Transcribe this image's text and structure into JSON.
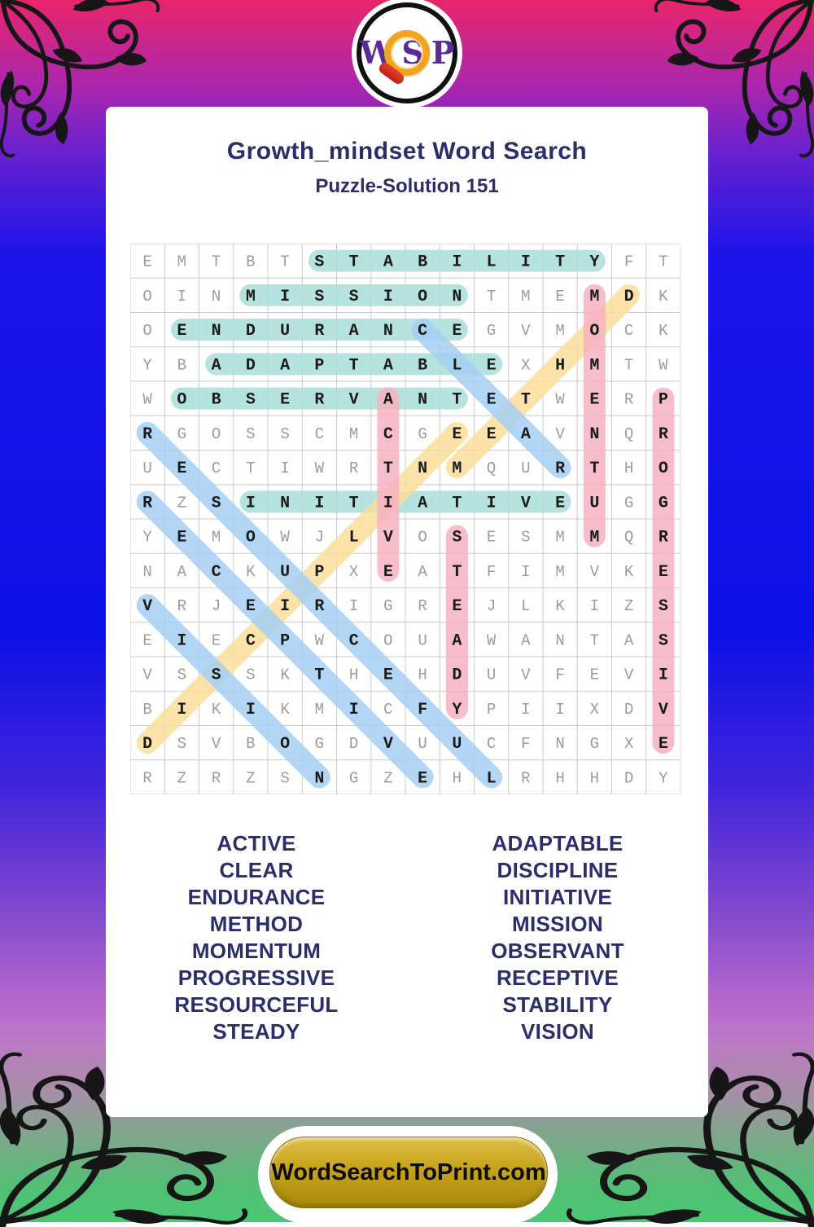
{
  "page": {
    "title": "Growth_mindset Word Search",
    "subtitle": "Puzzle-Solution 151"
  },
  "logo": {
    "w": "W",
    "s": "S",
    "p": "P",
    "icon": "magnifier-icon"
  },
  "grid": {
    "size": 16,
    "rows": [
      "EMTBTSTABILITYFT",
      "OINMISSIONTMEMDK",
      "OENDURANCEGVMOCK",
      "YBADAPTABLEXHMTW",
      "WOBSERVANTETWERP",
      "RGOSSCMCGEEAVNQR",
      "UECTIWRTNMQURTHO",
      "RZSINITIATIVEUGG",
      "YEMOWJLVOSESMMQR",
      "NACKUPXEATFIMVKE",
      "VRJEIRIGREJLKIZS",
      "EIECPWCOUAWANTAS",
      "VSSSKTHEHDUVFEVI",
      "BIKIKMICFYPIIXDV",
      "DSVBOGDVUUCFNGXE",
      "RZRZSNGZEHLRHHDY"
    ],
    "line_color": "#cccccc",
    "letter_color": "#9c9c9c",
    "highlight_letter_color": "#1a1a1a",
    "highlight_colors": {
      "teal": "#aadedb",
      "yellow": "#fbdf9b",
      "pink": "#f6b2c1",
      "blue": "#a5d0f3"
    },
    "highlights": [
      {
        "word": "STABILITY",
        "color": "teal",
        "start": [
          0,
          5
        ],
        "end": [
          0,
          13
        ]
      },
      {
        "word": "MISSION",
        "color": "teal",
        "start": [
          1,
          3
        ],
        "end": [
          1,
          9
        ]
      },
      {
        "word": "ENDURANCE",
        "color": "teal",
        "start": [
          2,
          1
        ],
        "end": [
          2,
          9
        ]
      },
      {
        "word": "ADAPTABLE",
        "color": "teal",
        "start": [
          3,
          2
        ],
        "end": [
          3,
          10
        ]
      },
      {
        "word": "OBSERVANT",
        "color": "teal",
        "start": [
          4,
          1
        ],
        "end": [
          4,
          9
        ]
      },
      {
        "word": "INITIATIVE",
        "color": "teal",
        "start": [
          7,
          3
        ],
        "end": [
          7,
          12
        ]
      },
      {
        "word": "METHOD",
        "color": "yellow",
        "start": [
          6,
          9
        ],
        "end": [
          1,
          14
        ]
      },
      {
        "word": "DISCIPLINE",
        "color": "yellow",
        "start": [
          14,
          0
        ],
        "end": [
          5,
          9
        ]
      },
      {
        "word": "MOMENTUM",
        "color": "pink",
        "start": [
          1,
          13
        ],
        "end": [
          8,
          13
        ]
      },
      {
        "word": "ACTIVE",
        "color": "pink",
        "start": [
          4,
          7
        ],
        "end": [
          9,
          7
        ]
      },
      {
        "word": "STEADY",
        "color": "pink",
        "start": [
          8,
          9
        ],
        "end": [
          13,
          9
        ]
      },
      {
        "word": "PROGRESSIVE",
        "color": "pink",
        "start": [
          4,
          15
        ],
        "end": [
          14,
          15
        ]
      },
      {
        "word": "CLEAR",
        "color": "blue",
        "start": [
          2,
          8
        ],
        "end": [
          6,
          12
        ]
      },
      {
        "word": "RESOURCEFUL",
        "color": "blue",
        "start": [
          5,
          0
        ],
        "end": [
          15,
          10
        ]
      },
      {
        "word": "RECEPTIVE",
        "color": "blue",
        "start": [
          7,
          0
        ],
        "end": [
          15,
          8
        ]
      },
      {
        "word": "VISION",
        "color": "blue",
        "start": [
          10,
          0
        ],
        "end": [
          15,
          5
        ]
      }
    ]
  },
  "word_list": {
    "left": [
      "ACTIVE",
      "CLEAR",
      "ENDURANCE",
      "METHOD",
      "MOMENTUM",
      "PROGRESSIVE",
      "RESOURCEFUL",
      "STEADY"
    ],
    "right": [
      "ADAPTABLE",
      "DISCIPLINE",
      "INITIATIVE",
      "MISSION",
      "OBSERVANT",
      "RECEPTIVE",
      "STABILITY",
      "VISION"
    ]
  },
  "footer": {
    "site_label": "WordSearchToPrint.com"
  },
  "colors": {
    "heading_navy": "#2c2e6b",
    "button_gold": "#c9a61f",
    "logo_purple": "#5c2a96",
    "magnifier_orange": "#f2a41f",
    "background_blue": "#0d11e6",
    "background_green": "#4ac873"
  }
}
